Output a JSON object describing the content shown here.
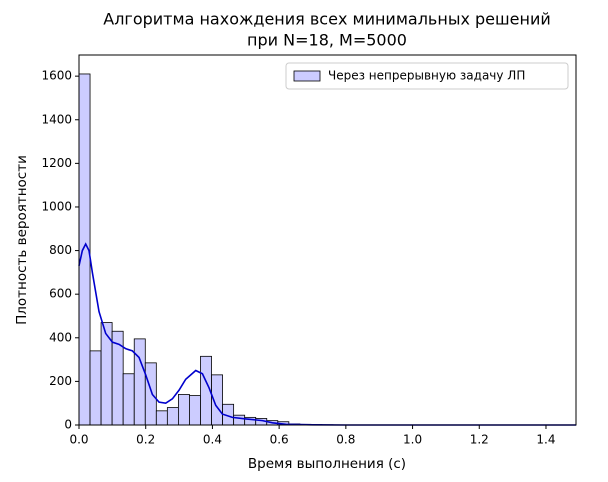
{
  "chart_data": {
    "type": "histogram",
    "title": [
      "Алгоритма нахождения всех минимальных решений",
      "при N=18, M=5000"
    ],
    "x_label": "Время выполнения (с)",
    "y_label": "Плотность вероятности",
    "bins": [
      0,
      0.0331,
      0.0662,
      0.0993,
      0.1324,
      0.1656,
      0.1987,
      0.2318,
      0.2649,
      0.298,
      0.3311,
      0.3642,
      0.3973,
      0.4304,
      0.4636,
      0.4967,
      0.5298,
      0.5629,
      0.596,
      0.6291,
      0.6622,
      0.6953,
      0.7284,
      0.7616,
      0.7947,
      0.8278,
      0.8609,
      0.894,
      0.9271,
      0.9602,
      0.9933,
      1.0264,
      1.0596,
      1.0927,
      1.1258,
      1.1589,
      1.192,
      1.2251,
      1.2582,
      1.2913,
      1.3244,
      1.3576,
      1.3907,
      1.4238,
      1.4569,
      1.49
    ],
    "series": [
      {
        "name": "Через непрерывную задачу ЛП",
        "color": "#ccccff",
        "edgecolor": "#000000",
        "values": [
          1610,
          340,
          470,
          430,
          235,
          395,
          285,
          65,
          80,
          140,
          135,
          315,
          230,
          95,
          45,
          35,
          30,
          20,
          15,
          5,
          3,
          2,
          1,
          0,
          0,
          0,
          0,
          0,
          0,
          0,
          0,
          0,
          0,
          0,
          0,
          0,
          0,
          0,
          0,
          0,
          0,
          0,
          0,
          0,
          0
        ]
      }
    ],
    "kde": {
      "color": "#0000cc",
      "x": [
        0,
        0.01,
        0.02,
        0.03,
        0.04,
        0.06,
        0.08,
        0.1,
        0.12,
        0.14,
        0.16,
        0.18,
        0.2,
        0.22,
        0.24,
        0.26,
        0.28,
        0.3,
        0.32,
        0.35,
        0.37,
        0.39,
        0.41,
        0.43,
        0.46,
        0.5,
        0.55,
        0.58,
        0.62,
        0.7,
        0.8,
        1.0,
        1.2,
        1.49
      ],
      "values": [
        730,
        800,
        830,
        800,
        700,
        520,
        420,
        380,
        370,
        350,
        340,
        310,
        230,
        140,
        105,
        100,
        120,
        160,
        210,
        250,
        235,
        170,
        90,
        50,
        35,
        28,
        20,
        10,
        3,
        1,
        0,
        0,
        0,
        0
      ]
    },
    "xlim": [
      0,
      1.49
    ],
    "ylim": [
      0,
      1697
    ],
    "xticks": [
      {
        "value": 0,
        "label": "0.0"
      },
      0.2,
      0.4,
      0.6,
      0.8,
      {
        "value": 1,
        "label": "1.0"
      },
      1.2,
      1.4
    ],
    "yticks": [
      0,
      200,
      400,
      600,
      800,
      1000,
      1200,
      1400,
      1600
    ],
    "legend": "upper right"
  }
}
